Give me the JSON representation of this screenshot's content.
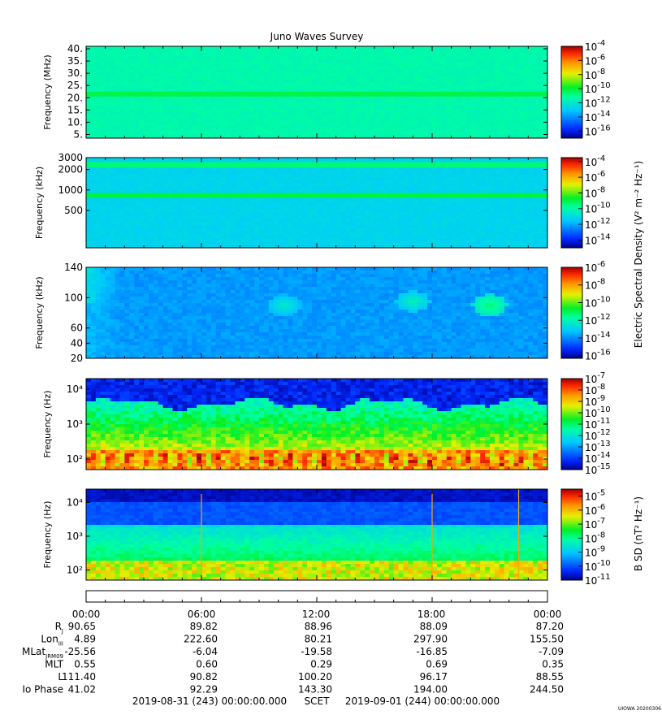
{
  "title": "Juno Waves Survey",
  "footer": {
    "start": "2019-08-31 (243) 00:00:00.000",
    "label": "SCET",
    "end": "2019-09-01 (244) 00:00:00.000",
    "stamp": "UIOWA 20200306"
  },
  "colorbars": {
    "electric_label": "Electric Spectral Density (V² m⁻² Hz⁻¹)",
    "magnetic_label": "B SD (nT² Hz⁻¹)"
  },
  "chart_data": [
    {
      "type": "heatmap",
      "panel": "hfwbr",
      "ylabel": "Frequency (MHz)",
      "y_scale": "linear",
      "ylim": [
        3.5,
        41
      ],
      "yticks": [
        "40.",
        "35.",
        "30.",
        "25.",
        "20.",
        "15.",
        "10.",
        "5."
      ],
      "ytick_values": [
        40,
        35,
        30,
        25,
        20,
        15,
        10,
        5
      ],
      "colorbar": {
        "min_exp": -17,
        "max_exp": -4,
        "labels": [
          "-4",
          "-6",
          "-8",
          "-10",
          "-12",
          "-14",
          "-16"
        ]
      },
      "features": {
        "background_level": -11.4,
        "bands": [
          {
            "center": 21.5,
            "halfwidth": 1.0,
            "level": -10.2
          }
        ]
      }
    },
    {
      "type": "heatmap",
      "panel": "hfr",
      "ylabel": "Frequency (kHz)",
      "y_scale": "log",
      "ylim": [
        140,
        3000
      ],
      "yticks": [
        "3000",
        "2000",
        "1000",
        "500"
      ],
      "ytick_values": [
        3000,
        2000,
        1000,
        500
      ],
      "colorbar": {
        "min_exp": -15,
        "max_exp": -3.5,
        "labels": [
          "-4",
          "-6",
          "-8",
          "-10",
          "-12",
          "-14"
        ]
      },
      "features": {
        "background_level": -11.2,
        "bands": [
          {
            "center": 2350,
            "halfwidth_log": 0.04,
            "level": -9.4
          },
          {
            "center": 830,
            "halfwidth_log": 0.035,
            "level": -8.9
          }
        ]
      }
    },
    {
      "type": "heatmap",
      "panel": "lfr_high",
      "ylabel": "Frequency (kHz)",
      "y_scale": "linear",
      "ylim": [
        20,
        140
      ],
      "yticks": [
        "140",
        "100",
        "60",
        "40",
        "20"
      ],
      "ytick_values": [
        140,
        100,
        60,
        40,
        20
      ],
      "colorbar": {
        "min_exp": -16.3,
        "max_exp": -6,
        "labels": [
          "-6",
          "-8",
          "-10",
          "-12",
          "-14",
          "-16"
        ]
      },
      "features": {
        "background_level": -13.8,
        "blobs": [
          {
            "hour": 17.0,
            "freq": 95,
            "level": -12.0
          },
          {
            "hour": 21.0,
            "freq": 90,
            "level": -11.2
          },
          {
            "hour": 10.3,
            "freq": 90,
            "level": -12.2
          }
        ]
      }
    },
    {
      "type": "heatmap",
      "panel": "lfr_low",
      "ylabel": "Frequency (Hz)",
      "y_scale": "log",
      "ylim": [
        50,
        20000
      ],
      "yticks": [
        "10⁴",
        "10³",
        "10²"
      ],
      "ytick_values": [
        10000,
        1000,
        100
      ],
      "colorbar": {
        "min_exp": -15,
        "max_exp": -7,
        "labels": [
          "-7",
          "-8",
          "-9",
          "-10",
          "-11",
          "-12",
          "-13",
          "-14",
          "-15"
        ]
      },
      "features": {
        "top_level": -14.3,
        "mid_level": -11.6,
        "bottom_level": -8.5,
        "bright_band_hz": [
          150,
          280
        ]
      }
    },
    {
      "type": "heatmap",
      "panel": "magnetic",
      "ylabel": "Frequency (Hz)",
      "y_scale": "log",
      "ylim": [
        50,
        25000
      ],
      "yticks": [
        "10⁴",
        "10³",
        "10²"
      ],
      "ytick_values": [
        10000,
        1000,
        100
      ],
      "colorbar": {
        "min_exp": -11,
        "max_exp": -4.5,
        "labels": [
          "-5",
          "-6",
          "-7",
          "-8",
          "-9",
          "-10",
          "-11"
        ]
      },
      "features": {
        "top_level": -10.4,
        "mid_level": -8.7,
        "bottom_level": -6.5,
        "spike_hours": [
          6.0,
          18.0,
          22.5
        ]
      }
    }
  ],
  "ephemeris": {
    "time_labels": [
      "00:00",
      "06:00",
      "12:00",
      "18:00",
      "00:00"
    ],
    "rows": [
      {
        "name": "R",
        "sub": "J",
        "values": [
          "90.65",
          "89.82",
          "88.96",
          "88.09",
          "87.20"
        ]
      },
      {
        "name": "Lon",
        "sub": "III",
        "values": [
          "4.89",
          "222.60",
          "80.21",
          "297.90",
          "155.50"
        ]
      },
      {
        "name": "MLat",
        "sub": "JRM09",
        "values": [
          "-25.56",
          "-6.04",
          "-19.58",
          "-16.85",
          "-7.09"
        ]
      },
      {
        "name": "MLT",
        "sub": "",
        "values": [
          "0.55",
          "0.60",
          "0.29",
          "0.69",
          "0.35"
        ]
      },
      {
        "name": "L",
        "sub": "",
        "values": [
          "111.40",
          "90.82",
          "100.20",
          "96.17",
          "88.55"
        ]
      },
      {
        "name": "Io Phase",
        "sub": "",
        "values": [
          "41.02",
          "92.29",
          "143.30",
          "194.00",
          "244.50"
        ]
      }
    ]
  }
}
